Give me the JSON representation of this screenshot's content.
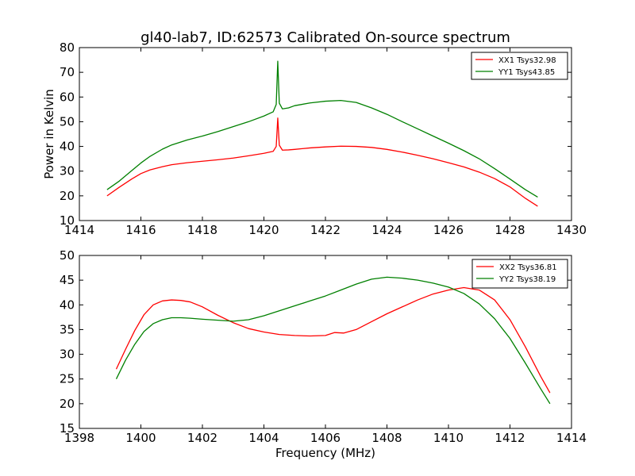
{
  "figure": {
    "title": "gl40-lab7, ID:62573 Calibrated On-source spectrum",
    "ylabel_top": "Power in Kelvin",
    "xlabel_bottom": "Frequency (MHz)"
  },
  "chart_data": [
    {
      "type": "line",
      "xlim": [
        1414,
        1430
      ],
      "ylim": [
        10,
        80
      ],
      "x_ticks": [
        1414,
        1416,
        1418,
        1420,
        1422,
        1424,
        1426,
        1428,
        1430
      ],
      "y_ticks": [
        10,
        20,
        30,
        40,
        50,
        60,
        70,
        80
      ],
      "legend_position": "top-right",
      "grid": false,
      "series": [
        {
          "name": "XX1 Tsys32.98",
          "color": "#ff0000",
          "x": [
            1414.9,
            1415.3,
            1415.7,
            1416.0,
            1416.3,
            1416.7,
            1417.0,
            1417.5,
            1418.0,
            1418.5,
            1419.0,
            1419.5,
            1420.0,
            1420.3,
            1420.4,
            1420.45,
            1420.5,
            1420.6,
            1420.8,
            1421.0,
            1421.5,
            1422.0,
            1422.5,
            1423.0,
            1423.5,
            1424.0,
            1424.5,
            1425.0,
            1425.5,
            1426.0,
            1426.5,
            1427.0,
            1427.5,
            1428.0,
            1428.5,
            1428.9
          ],
          "y": [
            20.0,
            23.5,
            26.8,
            29.0,
            30.5,
            31.8,
            32.6,
            33.4,
            34.0,
            34.6,
            35.3,
            36.2,
            37.2,
            38.0,
            40.0,
            51.5,
            40.5,
            38.5,
            38.6,
            38.8,
            39.4,
            39.8,
            40.1,
            40.0,
            39.6,
            38.8,
            37.7,
            36.4,
            35.0,
            33.4,
            31.7,
            29.6,
            27.0,
            23.6,
            19.0,
            15.8
          ]
        },
        {
          "name": "YY1 Tsys43.85",
          "color": "#008000",
          "x": [
            1414.9,
            1415.3,
            1415.7,
            1416.0,
            1416.3,
            1416.7,
            1417.0,
            1417.5,
            1418.0,
            1418.5,
            1419.0,
            1419.5,
            1420.0,
            1420.3,
            1420.4,
            1420.45,
            1420.5,
            1420.6,
            1420.8,
            1421.0,
            1421.5,
            1422.0,
            1422.5,
            1423.0,
            1423.5,
            1424.0,
            1424.5,
            1425.0,
            1425.5,
            1426.0,
            1426.5,
            1427.0,
            1427.5,
            1428.0,
            1428.5,
            1428.9
          ],
          "y": [
            22.5,
            26.0,
            30.2,
            33.3,
            36.0,
            38.9,
            40.6,
            42.6,
            44.2,
            46.0,
            48.0,
            50.0,
            52.3,
            54.0,
            57.0,
            74.5,
            57.5,
            55.2,
            55.6,
            56.5,
            57.6,
            58.3,
            58.6,
            57.8,
            55.6,
            53.0,
            50.0,
            47.1,
            44.2,
            41.3,
            38.3,
            35.0,
            31.0,
            26.8,
            22.5,
            19.5
          ]
        }
      ]
    },
    {
      "type": "line",
      "xlim": [
        1398,
        1414
      ],
      "ylim": [
        15,
        50
      ],
      "x_ticks": [
        1398,
        1400,
        1402,
        1404,
        1406,
        1408,
        1410,
        1412,
        1414
      ],
      "y_ticks": [
        15,
        20,
        25,
        30,
        35,
        40,
        45,
        50
      ],
      "legend_position": "top-right",
      "grid": false,
      "series": [
        {
          "name": "XX2 Tsys36.81",
          "color": "#ff0000",
          "x": [
            1399.2,
            1399.5,
            1399.8,
            1400.1,
            1400.4,
            1400.7,
            1401.0,
            1401.3,
            1401.6,
            1402.0,
            1402.5,
            1403.0,
            1403.5,
            1404.0,
            1404.5,
            1405.0,
            1405.5,
            1406.0,
            1406.3,
            1406.6,
            1407.0,
            1407.5,
            1408.0,
            1408.5,
            1409.0,
            1409.5,
            1410.0,
            1410.5,
            1411.0,
            1411.5,
            1412.0,
            1412.5,
            1413.0,
            1413.3
          ],
          "y": [
            27.0,
            31.0,
            34.8,
            38.0,
            40.0,
            40.8,
            41.0,
            40.9,
            40.6,
            39.6,
            37.9,
            36.4,
            35.2,
            34.5,
            34.0,
            33.8,
            33.7,
            33.8,
            34.4,
            34.3,
            35.0,
            36.6,
            38.2,
            39.6,
            41.0,
            42.2,
            43.0,
            43.5,
            43.0,
            41.0,
            37.0,
            31.5,
            25.5,
            22.2
          ]
        },
        {
          "name": "YY2 Tsys38.19",
          "color": "#008000",
          "x": [
            1399.2,
            1399.5,
            1399.8,
            1400.1,
            1400.4,
            1400.7,
            1401.0,
            1401.3,
            1401.6,
            1402.0,
            1402.5,
            1403.0,
            1403.5,
            1404.0,
            1404.5,
            1405.0,
            1405.5,
            1406.0,
            1406.5,
            1407.0,
            1407.5,
            1408.0,
            1408.5,
            1409.0,
            1409.5,
            1410.0,
            1410.5,
            1411.0,
            1411.5,
            1412.0,
            1412.5,
            1413.0,
            1413.3
          ],
          "y": [
            25.0,
            28.8,
            32.0,
            34.6,
            36.2,
            37.0,
            37.4,
            37.4,
            37.3,
            37.1,
            36.9,
            36.7,
            37.0,
            37.8,
            38.8,
            39.8,
            40.8,
            41.8,
            43.0,
            44.2,
            45.2,
            45.6,
            45.4,
            45.0,
            44.4,
            43.6,
            42.3,
            40.2,
            37.2,
            33.2,
            28.2,
            23.0,
            20.0
          ]
        }
      ]
    }
  ]
}
